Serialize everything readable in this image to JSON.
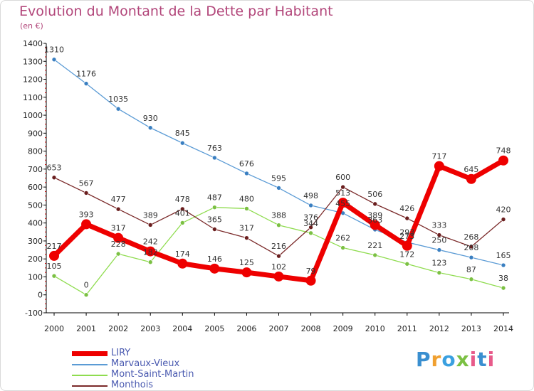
{
  "title": "Evolution du Montant de la Dette par Habitant",
  "unit": "(en €)",
  "logo_text": "Proxiti",
  "chart_data": {
    "type": "line",
    "title": "Evolution du Montant de la Dette par Habitant",
    "ylabel": "(en €)",
    "ylim": [
      -100,
      1400
    ],
    "yticks": [
      -100,
      0,
      100,
      200,
      300,
      400,
      500,
      600,
      700,
      800,
      900,
      1000,
      1100,
      1200,
      1300,
      1400
    ],
    "grid": false,
    "legend_position": "bottom-left",
    "x": [
      "2000",
      "2001",
      "2002",
      "2003",
      "2004",
      "2005",
      "2006",
      "2007",
      "2008",
      "2009",
      "2010",
      "2011",
      "2012",
      "2013",
      "2014"
    ],
    "series": [
      {
        "name": "Marvaux-Vieux",
        "color": "#5b9bd5",
        "marker_color": "#3a7fc1",
        "values": [
          1310,
          1176,
          1035,
          930,
          845,
          763,
          676,
          595,
          498,
          455,
          363,
          293,
          250,
          208,
          165
        ]
      },
      {
        "name": "Mont-Saint-Martin",
        "color": "#8fdc4f",
        "marker_color": "#7bc043",
        "values": [
          105,
          0,
          228,
          182,
          401,
          487,
          480,
          388,
          344,
          262,
          221,
          172,
          123,
          87,
          38
        ]
      },
      {
        "name": "Monthois",
        "color": "#7b2a2a",
        "marker_color": "#6a1e1e",
        "values": [
          653,
          567,
          477,
          389,
          478,
          365,
          317,
          216,
          376,
          600,
          506,
          426,
          333,
          268,
          420
        ]
      },
      {
        "name": "LIRY",
        "color": "#ee0000",
        "marker_color": "#ee0000",
        "values": [
          217,
          393,
          317,
          242,
          174,
          146,
          125,
          102,
          79,
          513,
          389,
          273,
          717,
          645,
          748
        ]
      }
    ],
    "labels": [
      {
        "series": "Marvaux-Vieux",
        "text": [
          "1310",
          "1176",
          "1035",
          "930",
          "845",
          "763",
          "676",
          "595",
          "498",
          "455",
          "363",
          "293",
          "250",
          "208",
          "165"
        ]
      },
      {
        "series": "Mont-Saint-Martin",
        "text": [
          "105",
          "0",
          "228",
          "182",
          "401",
          "487",
          "480",
          "388",
          "344",
          "262",
          "221",
          "172",
          "123",
          "87",
          "38"
        ]
      },
      {
        "series": "Monthois",
        "text": [
          "653",
          "567",
          "477",
          "389",
          "478",
          "365",
          "317",
          "216",
          "376",
          "600",
          "506",
          "426",
          "333",
          "268",
          "420"
        ]
      },
      {
        "series": "LIRY",
        "text": [
          "217",
          "393",
          "317",
          "242",
          "174",
          "146",
          "125",
          "102",
          "79",
          "513",
          "389",
          "273",
          "717",
          "645",
          "748"
        ]
      }
    ]
  },
  "legend": [
    {
      "label": "LIRY",
      "color": "#ee0000"
    },
    {
      "label": "Marvaux-Vieux",
      "color": "#5b9bd5"
    },
    {
      "label": "Mont-Saint-Martin",
      "color": "#8fdc4f"
    },
    {
      "label": "Monthois",
      "color": "#7b2a2a"
    }
  ]
}
